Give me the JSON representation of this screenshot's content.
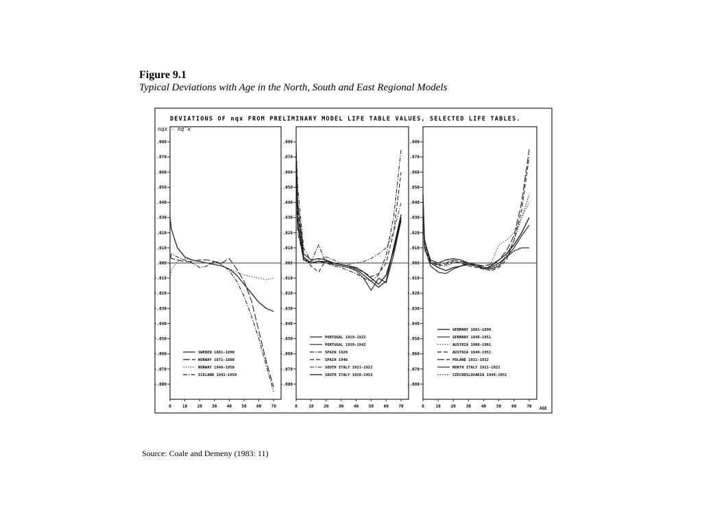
{
  "figure": {
    "title": "Figure 9.1",
    "subtitle": "Typical Deviations with Age in the North, South and East Regional Models",
    "header": "DEVIATIONS OF nqx FROM PRELIMINARY MODEL LIFE TABLE VALUES, SELECTED LIFE TABLES.",
    "source": "Source:  Coale and Demeny (1983: 11)"
  },
  "chart_data": [
    {
      "type": "line",
      "ylabel": "nqx - nq'x",
      "x": [
        0,
        1,
        5,
        10,
        15,
        20,
        25,
        30,
        35,
        40,
        45,
        50,
        55,
        60,
        65,
        70
      ],
      "xlim": [
        0,
        75
      ],
      "xticks": [
        0,
        10,
        20,
        30,
        40,
        50,
        60,
        70
      ],
      "ylim": [
        -0.09,
        0.09
      ],
      "yticks": [
        {
          "value": 0.08,
          "label": ".080"
        },
        {
          "value": 0.07,
          "label": ".070"
        },
        {
          "value": 0.06,
          "label": ".060"
        },
        {
          "value": 0.05,
          "label": ".050"
        },
        {
          "value": 0.04,
          "label": ".040"
        },
        {
          "value": 0.03,
          "label": ".030"
        },
        {
          "value": 0.02,
          "label": ".020"
        },
        {
          "value": 0.01,
          "label": ".010"
        },
        {
          "value": 0,
          "label": ".000"
        },
        {
          "value": -0.01,
          "label": "-.010"
        },
        {
          "value": -0.02,
          "label": "-.020"
        },
        {
          "value": -0.03,
          "label": "-.030"
        },
        {
          "value": -0.04,
          "label": "-.040"
        },
        {
          "value": -0.05,
          "label": "-.050"
        },
        {
          "value": -0.06,
          "label": "-.060"
        },
        {
          "value": -0.07,
          "label": "-.070"
        },
        {
          "value": -0.08,
          "label": "-.080"
        }
      ],
      "zero_line": true,
      "legend": "lower center",
      "series": [
        {
          "name": "SWEDEN 1881-1890",
          "color": "#222222",
          "style": "solid",
          "values": [
            0.03,
            0.022,
            0.01,
            0.004,
            0.002,
            0.001,
            0,
            -0.001,
            -0.002,
            -0.004,
            -0.008,
            -0.014,
            -0.02,
            -0.026,
            -0.03,
            -0.032
          ]
        },
        {
          "name": "NORWAY 1871-1880",
          "color": "#222222",
          "style": "longdash",
          "values": [
            0.005,
            0.003,
            0.002,
            0.001,
            0.001,
            0.002,
            0.002,
            0.001,
            0,
            0.003,
            -0.004,
            -0.012,
            -0.025,
            -0.045,
            -0.065,
            -0.082
          ]
        },
        {
          "name": "NORWAY 1946-1950",
          "color": "#444444",
          "style": "dotted",
          "values": [
            -0.01,
            -0.004,
            0.001,
            0.003,
            0.002,
            0.001,
            0,
            -0.001,
            -0.002,
            -0.004,
            -0.006,
            -0.008,
            -0.009,
            -0.01,
            -0.011,
            -0.01
          ]
        },
        {
          "name": "ICELAND 1941-1950",
          "color": "#222222",
          "style": "dashdot",
          "values": [
            0.004,
            0.006,
            0.004,
            0.002,
            0,
            -0.003,
            -0.002,
            0.001,
            -0.001,
            -0.005,
            -0.012,
            -0.022,
            -0.035,
            -0.05,
            -0.068,
            -0.085
          ]
        }
      ]
    },
    {
      "type": "line",
      "x": [
        0,
        1,
        5,
        10,
        15,
        20,
        25,
        30,
        35,
        40,
        45,
        50,
        55,
        60,
        65,
        70
      ],
      "xlim": [
        0,
        75
      ],
      "xticks": [
        0,
        10,
        20,
        30,
        40,
        50,
        60,
        70
      ],
      "ylim": [
        -0.09,
        0.09
      ],
      "yticks": [
        {
          "value": 0.08,
          "label": ".080"
        },
        {
          "value": 0.07,
          "label": ".070"
        },
        {
          "value": 0.06,
          "label": ".060"
        },
        {
          "value": 0.05,
          "label": ".050"
        },
        {
          "value": 0.04,
          "label": ".040"
        },
        {
          "value": 0.03,
          "label": ".030"
        },
        {
          "value": 0.02,
          "label": ".020"
        },
        {
          "value": 0.01,
          "label": ".010"
        },
        {
          "value": 0,
          "label": ".000"
        },
        {
          "value": -0.01,
          "label": "-.010"
        },
        {
          "value": -0.02,
          "label": "-.020"
        },
        {
          "value": -0.03,
          "label": "-.030"
        },
        {
          "value": -0.04,
          "label": "-.040"
        },
        {
          "value": -0.05,
          "label": "-.050"
        },
        {
          "value": -0.06,
          "label": "-.060"
        },
        {
          "value": -0.07,
          "label": "-.070"
        },
        {
          "value": -0.08,
          "label": "-.080"
        }
      ],
      "zero_line": true,
      "legend": "lower center",
      "series": [
        {
          "name": "PORTUGAL 1919-1922",
          "color": "#222222",
          "style": "solid",
          "values": [
            0.07,
            0.04,
            0.006,
            0.002,
            0.003,
            0.002,
            0,
            -0.001,
            -0.002,
            -0.004,
            -0.008,
            -0.012,
            -0.016,
            -0.012,
            0.01,
            0.032
          ]
        },
        {
          "name": "PORTUGAL 1939-1942",
          "color": "#333333",
          "style": "solid",
          "values": [
            0.06,
            0.03,
            0.004,
            0,
            0.001,
            0,
            -0.001,
            -0.002,
            -0.003,
            -0.005,
            -0.01,
            -0.018,
            -0.01,
            -0.013,
            0.005,
            0.028
          ]
        },
        {
          "name": "SPAIN 1920",
          "color": "#222222",
          "style": "dashdot",
          "values": [
            0.078,
            0.05,
            0.01,
            0.001,
            0.012,
            0,
            -0.002,
            -0.003,
            -0.005,
            -0.007,
            -0.01,
            -0.012,
            -0.008,
            0.005,
            0.03,
            0.075
          ]
        },
        {
          "name": "SPAIN 1940",
          "color": "#222222",
          "style": "dashed",
          "values": [
            0.075,
            0.035,
            0.004,
            -0.002,
            -0.006,
            0.002,
            -0.001,
            -0.002,
            -0.003,
            -0.004,
            -0.006,
            -0.009,
            -0.007,
            0,
            0.02,
            0.06
          ]
        },
        {
          "name": "SOUTH ITALY 1921-1922",
          "color": "#444444",
          "style": "dashdot",
          "values": [
            0.05,
            0.02,
            0.003,
            0.001,
            0.002,
            0.004,
            0.002,
            0,
            -0.001,
            0,
            0.001,
            0.003,
            0.006,
            0.01,
            0.02,
            0.04
          ]
        },
        {
          "name": "SOUTH ITALY 1950-1953",
          "color": "#111111",
          "style": "solid",
          "values": [
            0.065,
            0.025,
            0.002,
            0,
            0.001,
            0.001,
            0,
            -0.001,
            -0.002,
            -0.003,
            -0.006,
            -0.01,
            -0.014,
            -0.008,
            0.008,
            0.03
          ]
        }
      ]
    },
    {
      "type": "line",
      "xlabel": "AGE",
      "x": [
        0,
        1,
        5,
        10,
        15,
        20,
        25,
        30,
        35,
        40,
        45,
        50,
        55,
        60,
        65,
        70
      ],
      "xlim": [
        0,
        75
      ],
      "xticks": [
        0,
        10,
        20,
        30,
        40,
        50,
        60,
        70
      ],
      "ylim": [
        -0.09,
        0.09
      ],
      "yticks": [
        {
          "value": 0.08,
          "label": ".080"
        },
        {
          "value": 0.07,
          "label": ".070"
        },
        {
          "value": 0.06,
          "label": ".060"
        },
        {
          "value": 0.05,
          "label": ".050"
        },
        {
          "value": 0.04,
          "label": ".040"
        },
        {
          "value": 0.03,
          "label": ".030"
        },
        {
          "value": 0.02,
          "label": ".020"
        },
        {
          "value": 0.01,
          "label": ".010"
        },
        {
          "value": 0,
          "label": ".000"
        },
        {
          "value": -0.01,
          "label": "-.010"
        },
        {
          "value": -0.02,
          "label": "-.020"
        },
        {
          "value": -0.03,
          "label": "-.030"
        },
        {
          "value": -0.04,
          "label": "-.040"
        },
        {
          "value": -0.05,
          "label": "-.050"
        },
        {
          "value": -0.06,
          "label": "-.060"
        },
        {
          "value": -0.07,
          "label": "-.070"
        },
        {
          "value": -0.08,
          "label": "-.080"
        }
      ],
      "zero_line": true,
      "legend": "lower center",
      "series": [
        {
          "name": "GERMANY 1881-1890",
          "color": "#111111",
          "style": "solid",
          "values": [
            0.045,
            0.015,
            0,
            -0.003,
            -0.005,
            -0.003,
            -0.002,
            -0.001,
            -0.002,
            -0.004,
            -0.002,
            0.002,
            0.006,
            0.012,
            0.02,
            0.03
          ]
        },
        {
          "name": "GERMANY 1949-1951",
          "color": "#333333",
          "style": "solid",
          "values": [
            0.04,
            0.01,
            -0.002,
            -0.006,
            -0.007,
            -0.004,
            -0.002,
            0,
            -0.002,
            -0.003,
            -0.003,
            0,
            0.004,
            0.01,
            0.018,
            0.025
          ]
        },
        {
          "name": "AUSTRIA 1900-1901",
          "color": "#444444",
          "style": "dotted",
          "values": [
            0.03,
            0.008,
            0.002,
            0,
            0.002,
            0.001,
            0,
            -0.001,
            -0.001,
            -0.002,
            0,
            0.012,
            0.015,
            0.02,
            0.03,
            0.04
          ]
        },
        {
          "name": "AUSTRIA 1949-1951",
          "color": "#222222",
          "style": "dashed",
          "values": [
            0.035,
            0.012,
            0.001,
            -0.002,
            -0.001,
            0.001,
            0,
            -0.002,
            -0.003,
            -0.004,
            -0.005,
            -0.003,
            0.002,
            0.015,
            0.035,
            0.07
          ]
        },
        {
          "name": "POLAND 1931-1932",
          "color": "#222222",
          "style": "longdash",
          "values": [
            0.038,
            0.01,
            0,
            -0.001,
            0,
            0.002,
            0.001,
            0,
            -0.001,
            -0.002,
            -0.001,
            0.002,
            0.008,
            0.018,
            0.04,
            0.075
          ]
        },
        {
          "name": "NORTH ITALY 1921-1922",
          "color": "#333333",
          "style": "solid",
          "values": [
            0.042,
            0.014,
            0.002,
            0,
            0.002,
            0.003,
            0.002,
            0,
            -0.001,
            -0.003,
            -0.004,
            -0.002,
            0.004,
            0.008,
            0.01,
            0.01
          ]
        },
        {
          "name": "CZECHOSLOVAKIA 1949-1951",
          "color": "#111111",
          "style": "dotted",
          "values": [
            0.045,
            0.016,
            0.001,
            -0.001,
            -0.002,
            0,
            0.001,
            0,
            -0.002,
            -0.004,
            -0.004,
            -0.001,
            0.005,
            0.015,
            0.03,
            0.045
          ]
        }
      ]
    }
  ]
}
